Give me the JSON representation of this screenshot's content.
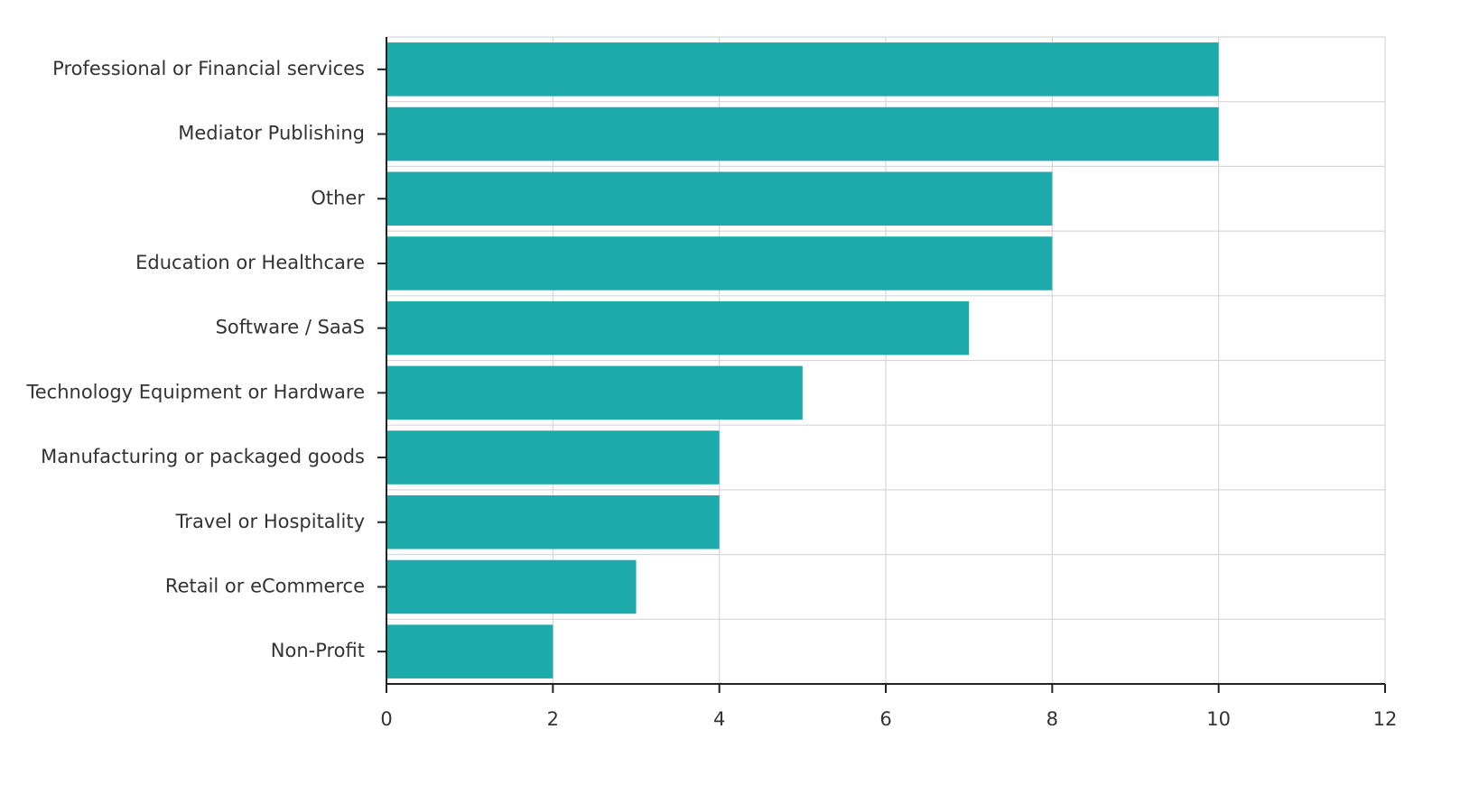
{
  "chart_data": {
    "type": "bar",
    "orientation": "horizontal",
    "title": "",
    "xlabel": "",
    "ylabel": "",
    "categories": [
      "Professional or Financial services",
      "Mediator Publishing",
      "Other",
      "Education or Healthcare",
      "Software / SaaS",
      "Technology Equipment or Hardware",
      "Manufacturing or packaged goods",
      "Travel or Hospitality",
      "Retail or eCommerce",
      "Non-Profit"
    ],
    "values": [
      10,
      10,
      8,
      8,
      7,
      5,
      4,
      4,
      3,
      2
    ],
    "xlim": [
      0,
      12
    ],
    "xticks": [
      0,
      2,
      4,
      6,
      8,
      10,
      12
    ],
    "grid": true,
    "legend": "none",
    "bar_color": "#1cabaa"
  }
}
